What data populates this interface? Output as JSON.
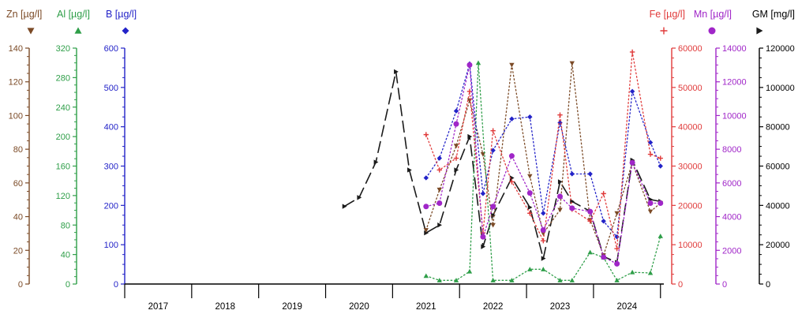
{
  "chart_data": {
    "type": "line",
    "title": "",
    "xlabel": "",
    "x_tick_labels": [
      "2017",
      "2018",
      "2019",
      "2020",
      "2021",
      "2022",
      "2023",
      "2024"
    ],
    "x_range": [
      2016.5,
      2024.55
    ],
    "axes": [
      {
        "id": "zn",
        "label": "Zn [µg/l]",
        "side": "left",
        "color": "#7B4A26",
        "range": [
          0,
          140
        ],
        "ticks": [
          "0",
          "20",
          "40",
          "60",
          "80",
          "100",
          "120",
          "140"
        ]
      },
      {
        "id": "al",
        "label": "Al [µg/l]",
        "side": "left",
        "color": "#2E9E48",
        "range": [
          0,
          320
        ],
        "ticks": [
          "0",
          "40",
          "80",
          "120",
          "160",
          "200",
          "240",
          "280",
          "320"
        ]
      },
      {
        "id": "b",
        "label": "B [µg/l]",
        "side": "left",
        "color": "#2323C8",
        "range": [
          0,
          600
        ],
        "ticks": [
          "0",
          "100",
          "200",
          "300",
          "400",
          "500",
          "600"
        ]
      },
      {
        "id": "fe",
        "label": "Fe [µg/l]",
        "side": "right",
        "color": "#E03A3A",
        "range": [
          0,
          60000
        ],
        "ticks": [
          "0",
          "10000",
          "20000",
          "30000",
          "40000",
          "50000",
          "60000"
        ]
      },
      {
        "id": "mn",
        "label": "Mn [µg/l]",
        "side": "right",
        "color": "#A026C8",
        "range": [
          0,
          14000
        ],
        "ticks": [
          "0",
          "2000",
          "4000",
          "6000",
          "8000",
          "10000",
          "12000",
          "14000"
        ]
      },
      {
        "id": "gm",
        "label": "GM [mg/l]",
        "side": "right",
        "color": "#000000",
        "range": [
          0,
          120000
        ],
        "ticks": [
          "0",
          "20000",
          "40000",
          "60000",
          "80000",
          "100000",
          "120000"
        ]
      }
    ],
    "series": [
      {
        "name": "GM [mg/l]",
        "axis": "gm",
        "color": "#1a1a1a",
        "marker": "triangle-right",
        "dash": "long",
        "x": [
          2019.78,
          2020.0,
          2020.25,
          2020.55,
          2020.75,
          2021.0,
          2021.2,
          2021.45,
          2021.65,
          2021.85,
          2022.0,
          2022.28,
          2022.55,
          2022.75,
          2023.0,
          2023.18,
          2023.45,
          2023.65,
          2023.85,
          2024.08,
          2024.35,
          2024.5
        ],
        "y": [
          39500,
          44000,
          62000,
          108000,
          58000,
          26000,
          30000,
          58000,
          75000,
          19000,
          35000,
          54000,
          39000,
          13000,
          52000,
          42000,
          37000,
          14000,
          11000,
          63000,
          43000,
          42000
        ]
      },
      {
        "name": "Zn [µg/l]",
        "axis": "zn",
        "color": "#7B4A26",
        "marker": "triangle-down",
        "dash": "dot",
        "x": [
          2021.0,
          2021.2,
          2021.45,
          2021.65,
          2021.85,
          2022.0,
          2022.28,
          2022.55,
          2022.75,
          2023.0,
          2023.18,
          2023.45,
          2023.65,
          2023.85,
          2024.08,
          2024.35,
          2024.5
        ],
        "y": [
          32,
          56,
          82,
          109,
          77,
          35,
          130,
          64,
          30,
          44,
          131,
          38,
          17,
          42,
          72,
          43,
          48
        ]
      },
      {
        "name": "Al [µg/l]",
        "axis": "al",
        "color": "#2E9E48",
        "marker": "triangle-up",
        "dash": "dot",
        "x": [
          2021.0,
          2021.2,
          2021.45,
          2021.65,
          2021.78,
          2022.0,
          2022.28,
          2022.55,
          2022.75,
          2023.0,
          2023.18,
          2023.45,
          2023.65,
          2023.85,
          2024.08,
          2024.35,
          2024.5
        ],
        "y": [
          11,
          5,
          5,
          17,
          300,
          5,
          5,
          20,
          20,
          5,
          5,
          43,
          36,
          5,
          16,
          15,
          65
        ]
      },
      {
        "name": "B [µg/l]",
        "axis": "b",
        "color": "#2323C8",
        "marker": "diamond",
        "dash": "dot",
        "x": [
          2021.0,
          2021.2,
          2021.45,
          2021.65,
          2021.85,
          2022.0,
          2022.28,
          2022.55,
          2022.75,
          2023.0,
          2023.18,
          2023.45,
          2023.65,
          2023.85,
          2024.08,
          2024.35,
          2024.5
        ],
        "y": [
          270,
          320,
          440,
          560,
          230,
          340,
          420,
          425,
          180,
          410,
          280,
          280,
          160,
          120,
          490,
          360,
          300
        ]
      },
      {
        "name": "Fe [µg/l]",
        "axis": "fe",
        "color": "#E03A3A",
        "marker": "plus",
        "dash": "dot",
        "x": [
          2021.0,
          2021.2,
          2021.45,
          2021.65,
          2021.85,
          2022.0,
          2022.28,
          2022.55,
          2022.75,
          2023.0,
          2023.18,
          2023.45,
          2023.65,
          2023.85,
          2024.08,
          2024.35,
          2024.5
        ],
        "y": [
          38000,
          29000,
          32000,
          49000,
          13000,
          39000,
          26000,
          18000,
          11000,
          43000,
          19000,
          16000,
          23000,
          9000,
          59000,
          33000,
          32000
        ]
      },
      {
        "name": "Mn [µg/l]",
        "axis": "mn",
        "color": "#A026C8",
        "marker": "circle",
        "dash": "dot",
        "x": [
          2021.0,
          2021.2,
          2021.45,
          2021.65,
          2021.85,
          2022.0,
          2022.28,
          2022.55,
          2022.75,
          2023.0,
          2023.18,
          2023.45,
          2023.65,
          2023.85,
          2024.08,
          2024.35,
          2024.5
        ],
        "y": [
          4600,
          4800,
          9500,
          13000,
          2800,
          4600,
          7600,
          5400,
          3200,
          5200,
          4500,
          4300,
          1600,
          1200,
          7200,
          4800,
          4800
        ]
      }
    ]
  }
}
